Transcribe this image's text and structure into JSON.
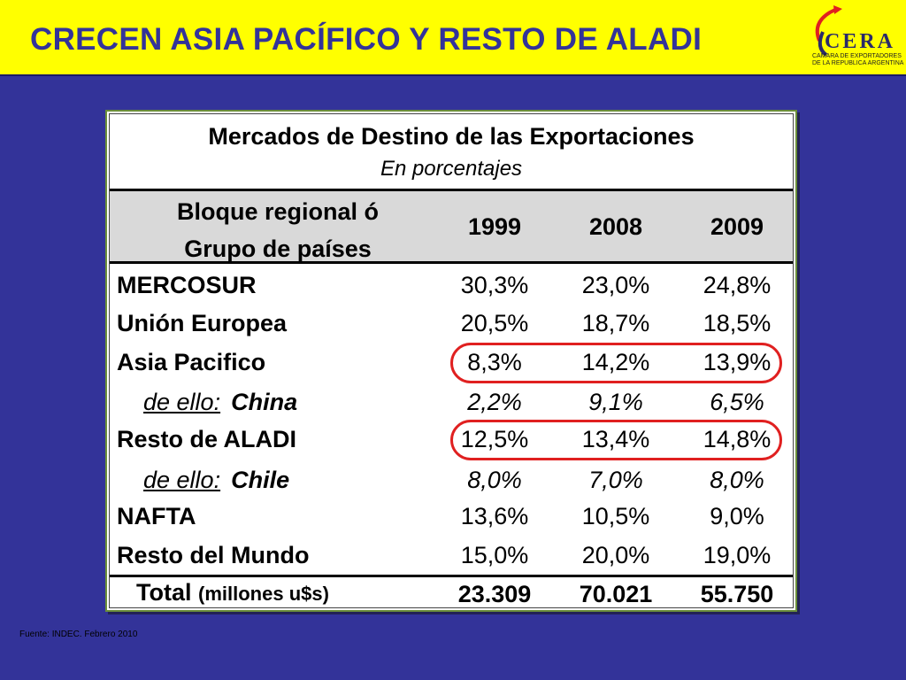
{
  "header": {
    "title": "CRECEN ASIA PACÍFICO Y RESTO DE ALADI",
    "logo_text": "CERA",
    "logo_subtitle_1": "CAMARA DE EXPORTADORES",
    "logo_subtitle_2": "DE LA REPUBLICA ARGENTINA"
  },
  "table": {
    "title": "Mercados de Destino de las Exportaciones",
    "subtitle": "En porcentajes",
    "header_label_1": "Bloque regional ó",
    "header_label_2": "Grupo de países",
    "years": [
      "1999",
      "2008",
      "2009"
    ],
    "rows": [
      {
        "label": "MERCOSUR",
        "values": [
          "30,3%",
          "23,0%",
          "24,8%"
        ]
      },
      {
        "label": "Unión Europea",
        "values": [
          "20,5%",
          "18,7%",
          "18,5%"
        ]
      },
      {
        "label": "Asia Pacifico",
        "values": [
          "8,3%",
          "14,2%",
          "13,9%"
        ]
      },
      {
        "prefix": "de ello:",
        "label": "China",
        "values": [
          "2,2%",
          "9,1%",
          "6,5%"
        ]
      },
      {
        "label": "Resto de ALADI",
        "values": [
          "12,5%",
          "13,4%",
          "14,8%"
        ]
      },
      {
        "prefix": "de ello:",
        "label": "Chile",
        "values": [
          "8,0%",
          "7,0%",
          "8,0%"
        ]
      },
      {
        "label": "NAFTA",
        "values": [
          "13,6%",
          "10,5%",
          "9,0%"
        ]
      },
      {
        "label": "Resto del Mundo",
        "values": [
          "15,0%",
          "20,0%",
          "19,0%"
        ]
      }
    ],
    "total": {
      "label": "Total",
      "label_small": "(millones u$s)",
      "values": [
        "23.309",
        "70.021",
        "55.750"
      ]
    }
  },
  "footer": {
    "source": "Fuente: INDEC. Febrero 2010"
  },
  "colors": {
    "background": "#333399",
    "header": "#ffff00",
    "highlight": "#e02020"
  }
}
